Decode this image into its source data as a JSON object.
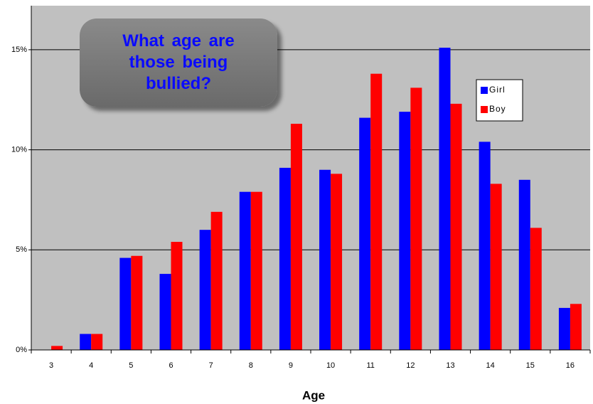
{
  "chart_data": {
    "type": "bar",
    "title": "What age are those being bullied?",
    "x_label": "Age",
    "categories": [
      "3",
      "4",
      "5",
      "6",
      "7",
      "8",
      "9",
      "10",
      "11",
      "12",
      "13",
      "14",
      "15",
      "16"
    ],
    "series": [
      {
        "name": "Girl",
        "color": "#0000ff",
        "values": [
          0,
          0.8,
          4.6,
          3.8,
          6.0,
          7.9,
          9.1,
          9.0,
          11.6,
          11.9,
          15.1,
          10.4,
          8.5,
          2.1
        ]
      },
      {
        "name": "Boy",
        "color": "#ff0000",
        "values": [
          0.2,
          0.8,
          4.7,
          5.4,
          6.9,
          7.9,
          11.3,
          8.8,
          13.8,
          13.1,
          12.3,
          8.3,
          6.1,
          2.3
        ]
      }
    ],
    "ylim": [
      0,
      17.2
    ],
    "yticks": [
      {
        "value": 0,
        "label": "0%"
      },
      {
        "value": 5,
        "label": "5%"
      },
      {
        "value": 10,
        "label": "10%"
      },
      {
        "value": 15,
        "label": "15%"
      }
    ],
    "grid": true,
    "legend": "right"
  }
}
